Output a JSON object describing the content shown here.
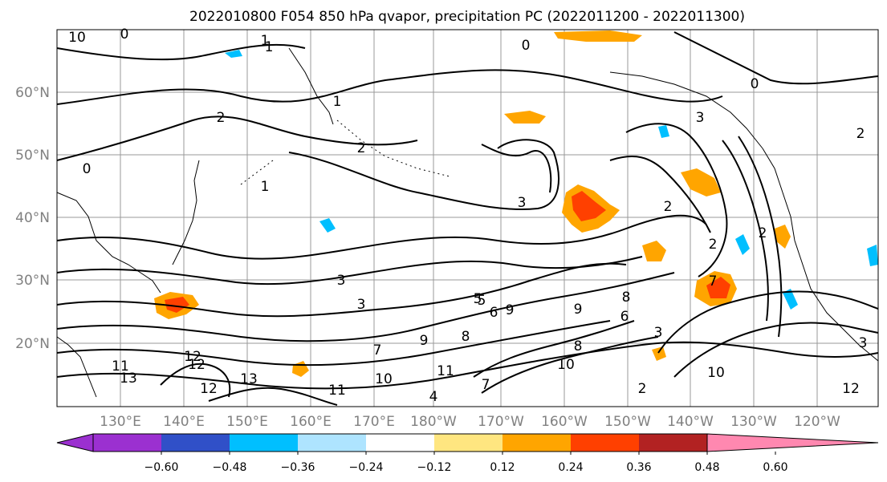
{
  "title": "2022010800 F054 850 hPa qvapor, precipitation PC (2022011200 - 2022011300)",
  "lat_labels": [
    "60°N",
    "50°N",
    "40°N",
    "30°N",
    "20°N"
  ],
  "lon_labels": [
    "130°E",
    "140°E",
    "150°E",
    "160°E",
    "170°E",
    "180°W",
    "170°W",
    "160°W",
    "150°W",
    "140°W",
    "130°W",
    "120°W"
  ],
  "colorbar": {
    "colors": [
      "#9b30d0",
      "#000080",
      "#3050c8",
      "#00bfff",
      "#aee4ff",
      "#ffffff",
      "#ffe680",
      "#ffa500",
      "#ff4000",
      "#b22222",
      "#ff88b0"
    ],
    "tick_labels": [
      "−0.60",
      "−0.48",
      "−0.36",
      "−0.24",
      "−0.12",
      "0.12",
      "0.24",
      "0.36",
      "0.48",
      "0.60"
    ]
  },
  "contour_labels": [
    "10",
    "0",
    "1",
    "0",
    "2",
    "0",
    "2",
    "1",
    "2",
    "3",
    "3",
    "3",
    "5",
    "6",
    "8",
    "9",
    "9",
    "7",
    "11",
    "11",
    "13",
    "12",
    "12",
    "10",
    "4",
    "2",
    "2",
    "3",
    "3",
    "7",
    "8",
    "10",
    "6",
    "12",
    "2",
    "3",
    "0",
    "1",
    "2",
    "1",
    "5",
    "9",
    "12",
    "13",
    "10",
    "11",
    "8",
    "7"
  ],
  "map_colors": {
    "contour": "#000000",
    "grid": "#999999",
    "coast": "#000000"
  }
}
